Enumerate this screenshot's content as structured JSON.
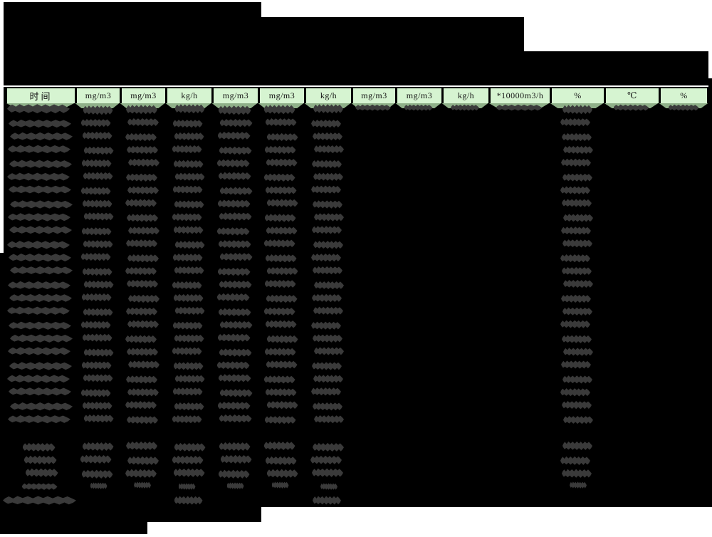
{
  "report": {
    "title_visible_text": "",
    "header": {
      "units": [
        "时间",
        "mg/m3",
        "mg/m3",
        "kg/h",
        "mg/m3",
        "mg/m3",
        "kg/h",
        "mg/m3",
        "mg/m3",
        "kg/h",
        "*10000m3/h",
        "%",
        "℃",
        "%"
      ]
    },
    "table": {
      "main_row_count": 24,
      "columns_with_redacted_values_in_main_rows": [
        0,
        1,
        2,
        3,
        4,
        5,
        6,
        11
      ],
      "columns_with_partial_top_sliver_values": [
        7,
        8,
        9,
        10,
        12,
        13
      ],
      "summary_rows": [
        {
          "columns": [
            0,
            1,
            2,
            3,
            4,
            5,
            6,
            11
          ],
          "size": "normal",
          "long_label": false
        },
        {
          "columns": [
            0,
            1,
            2,
            3,
            4,
            5,
            6,
            11
          ],
          "size": "normal",
          "long_label": false
        },
        {
          "columns": [
            0,
            1,
            2,
            3,
            4,
            5,
            6,
            11
          ],
          "size": "normal",
          "long_label": false
        },
        {
          "columns": [
            0,
            1,
            2,
            3,
            4,
            5,
            6,
            11
          ],
          "size": "small",
          "long_label": false
        },
        {
          "columns": [
            0,
            3,
            6
          ],
          "size": "normal",
          "long_label": true
        }
      ]
    },
    "colors": {
      "redaction": "#000000",
      "page_bg": "#ffffff",
      "header_bg": "#d6f4d1",
      "header_shadow": "#8fb089",
      "value_blob": "#3a3a3a"
    }
  }
}
